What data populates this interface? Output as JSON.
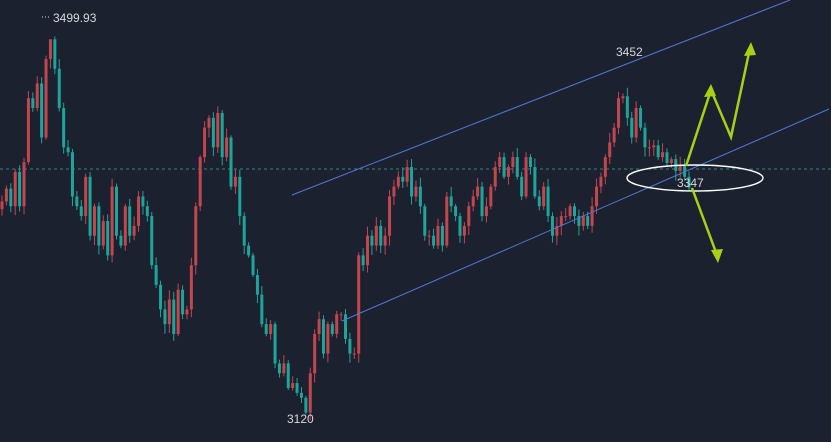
{
  "colors": {
    "background": "#1c2130",
    "up": "#c2464e",
    "down": "#1fa49a",
    "channel": "#4f79d6",
    "reference": "#2a8a86",
    "arrow": "#a6d213",
    "ellipse": "#ffffff",
    "label": "#d7d8db"
  },
  "chart_data": {
    "type": "candlestick",
    "ylim": [
      3090,
      3540
    ],
    "labels": {
      "high": "3499.93",
      "channel_top": "3452",
      "support": "3347",
      "low": "3120"
    },
    "key_levels": {
      "high": 3499.93,
      "channel_top": 3452,
      "support": 3347,
      "low": 3120
    },
    "reference_line": 3368,
    "closes": [
      3335,
      3348,
      3330,
      3365,
      3330,
      3375,
      3440,
      3430,
      3455,
      3400,
      3480,
      3500,
      3470,
      3430,
      3390,
      3385,
      3340,
      3330,
      3320,
      3360,
      3300,
      3330,
      3290,
      3315,
      3280,
      3350,
      3300,
      3290,
      3330,
      3300,
      3310,
      3340,
      3330,
      3320,
      3270,
      3250,
      3225,
      3210,
      3235,
      3200,
      3245,
      3220,
      3225,
      3270,
      3330,
      3380,
      3410,
      3420,
      3390,
      3425,
      3380,
      3400,
      3350,
      3360,
      3320,
      3290,
      3280,
      3260,
      3240,
      3210,
      3200,
      3210,
      3170,
      3160,
      3170,
      3145,
      3150,
      3140,
      3135,
      3120,
      3160,
      3200,
      3215,
      3180,
      3210,
      3200,
      3220,
      3220,
      3195,
      3180,
      3180,
      3280,
      3270,
      3300,
      3290,
      3310,
      3290,
      3300,
      3340,
      3350,
      3360,
      3355,
      3370,
      3340,
      3350,
      3330,
      3300,
      3300,
      3290,
      3310,
      3290,
      3340,
      3330,
      3320,
      3300,
      3310,
      3330,
      3340,
      3350,
      3320,
      3330,
      3350,
      3370,
      3380,
      3360,
      3370,
      3380,
      3360,
      3340,
      3380,
      3370,
      3340,
      3330,
      3350,
      3320,
      3300,
      3310,
      3320,
      3320,
      3330,
      3320,
      3310,
      3320,
      3310,
      3330,
      3350,
      3360,
      3380,
      3395,
      3410,
      3440,
      3442,
      3420,
      3400,
      3430,
      3410,
      3390,
      3390,
      3392,
      3380,
      3385,
      3374,
      3378,
      3366,
      3372,
      3360,
      3349
    ]
  },
  "annotations": {
    "trend_arrows": 3
  }
}
